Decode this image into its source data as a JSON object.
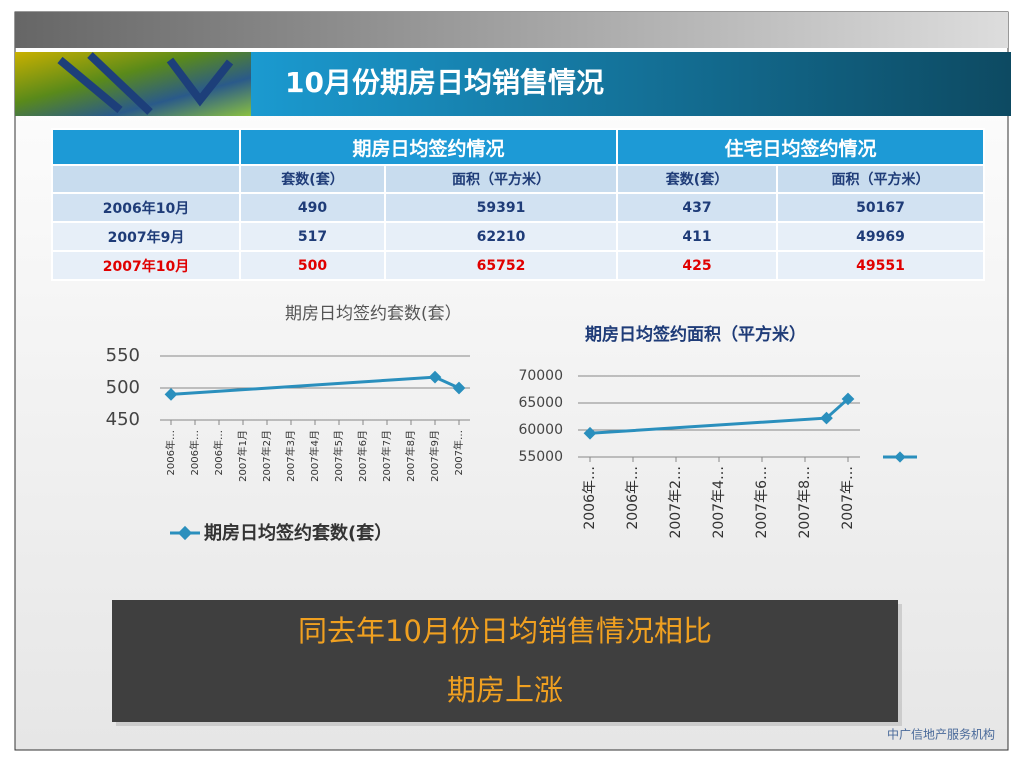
{
  "header": {
    "title": "10月份期房日均销售情况"
  },
  "table": {
    "groups": [
      "期房日均签约情况",
      "住宅日均签约情况"
    ],
    "subheaders": [
      "套数(套）",
      "面积（平方米）",
      "套数(套）",
      "面积（平方米）"
    ],
    "rows": [
      [
        "2006年10月",
        490,
        59391,
        437,
        50167
      ],
      [
        "2007年9月",
        517,
        62210,
        411,
        49969
      ],
      [
        "2007年10月",
        500,
        65752,
        425,
        49551
      ]
    ]
  },
  "chart_data": [
    {
      "type": "line",
      "title": "期房日均签约套数(套）",
      "xticks": [
        {
          "value": "2006年10月",
          "label": "2006年…"
        },
        {
          "value": "2006年11月",
          "label": "2006年…"
        },
        {
          "value": "2006年12月",
          "label": "2006年…"
        },
        {
          "value": "2007年1月",
          "label": "2007年1月"
        },
        {
          "value": "2007年2月",
          "label": "2007年2月"
        },
        {
          "value": "2007年3月",
          "label": "2007年3月"
        },
        {
          "value": "2007年4月",
          "label": "2007年4月"
        },
        {
          "value": "2007年5月",
          "label": "2007年5月"
        },
        {
          "value": "2007年6月",
          "label": "2007年6月"
        },
        {
          "value": "2007年7月",
          "label": "2007年7月"
        },
        {
          "value": "2007年8月",
          "label": "2007年8月"
        },
        {
          "value": "2007年9月",
          "label": "2007年9月"
        },
        {
          "value": "2007年10月",
          "label": "2007年…"
        }
      ],
      "series": [
        {
          "name": "期房日均签约套数(套）",
          "color": "#2a8fbd",
          "x": [
            "2006年10月",
            "2007年9月",
            "2007年10月"
          ],
          "values": [
            490,
            517,
            500
          ]
        }
      ],
      "ylim": [
        450,
        550
      ],
      "yticks": [
        450,
        500,
        550
      ],
      "grid": true
    },
    {
      "type": "line",
      "title": "期房日均签约面积（平方米）",
      "xticks": [
        {
          "value": "2006年10月",
          "label": "2006年…"
        },
        {
          "value": "2006年12月",
          "label": "2006年…"
        },
        {
          "value": "2007年2月",
          "label": "2007年2…"
        },
        {
          "value": "2007年4月",
          "label": "2007年4…"
        },
        {
          "value": "2007年6月",
          "label": "2007年6…"
        },
        {
          "value": "2007年8月",
          "label": "2007年8…"
        },
        {
          "value": "2007年10月",
          "label": "2007年…"
        }
      ],
      "series": [
        {
          "color": "#2a8fbd",
          "x": [
            "2006年10月",
            "2007年9月",
            "2007年10月"
          ],
          "values": [
            59391,
            62210,
            65752
          ]
        }
      ],
      "ylim": [
        55000,
        70000
      ],
      "yticks": [
        55000,
        60000,
        65000,
        70000
      ],
      "grid": true
    }
  ],
  "callout": {
    "line1": "同去年10月份日均销售情况相比",
    "line2": "期房上涨"
  },
  "footer": "中广信地产服务机构"
}
